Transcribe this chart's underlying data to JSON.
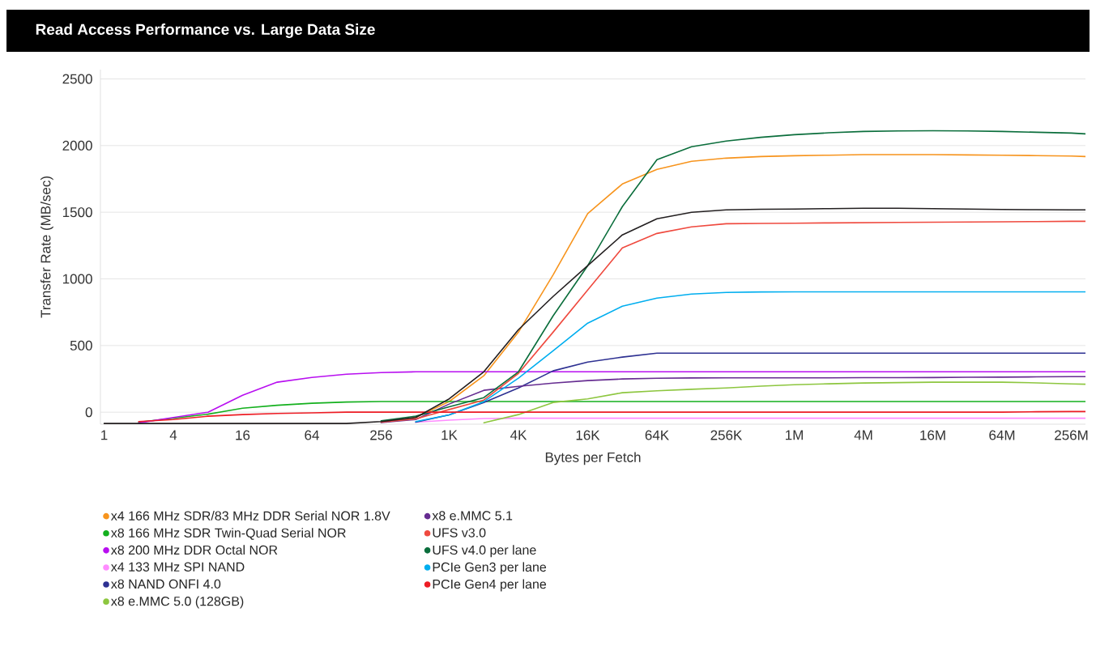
{
  "chart_data": {
    "type": "line",
    "title": "Read Access Performance vs. Large Data Size",
    "xlabel": "Bytes per Fetch",
    "ylabel": "Transfer Rate (MB/sec)",
    "x": [
      1,
      2,
      4,
      8,
      16,
      32,
      64,
      128,
      256,
      512,
      1000,
      2000,
      4000,
      8000,
      16000,
      32000,
      64000,
      128000,
      256000,
      512000,
      1000000,
      2000000,
      4000000,
      8000000,
      16000000,
      32000000,
      64000000,
      128000000,
      256000000,
      340000000
    ],
    "log": "x",
    "xlim": [
      0.93,
      340000000
    ],
    "ylim": [
      -90,
      2570
    ],
    "xticks": [
      1,
      4,
      16,
      64,
      256,
      {
        "value": 1000,
        "label": "1K"
      },
      {
        "value": 4000,
        "label": "4K"
      },
      {
        "value": 16000,
        "label": "16K"
      },
      {
        "value": 64000,
        "label": "64K"
      },
      {
        "value": 256000,
        "label": "256K"
      },
      {
        "value": 1000000,
        "label": "1M"
      },
      {
        "value": 4000000,
        "label": "4M"
      },
      {
        "value": 16000000,
        "label": "16M"
      },
      {
        "value": 64000000,
        "label": "64M"
      },
      {
        "value": 256000000,
        "label": "256M"
      }
    ],
    "yticks": [
      0,
      500,
      1000,
      1500,
      2000,
      2500
    ],
    "grid": "y",
    "legend": "bottom",
    "marker": "none",
    "line_style": "solid",
    "series": [
      {
        "name": "x4 166 MHz SDR/83 MHz DDR Serial NOR 1.8V",
        "color": "#f7941d",
        "values": [
          null,
          null,
          null,
          null,
          null,
          null,
          null,
          null,
          -75,
          -40,
          80,
          273,
          600,
          1030,
          1490,
          1712,
          1821,
          1882,
          1906,
          1918,
          1924,
          1928,
          1932,
          1932,
          1932,
          1930,
          1928,
          1925,
          1922,
          1918
        ]
      },
      {
        "name": "x8 166 MHz SDR Twin-Quad Serial NOR",
        "color": "#14b01e",
        "values": [
          null,
          -75,
          null,
          -15,
          30,
          52,
          67,
          76,
          80,
          80,
          80,
          80,
          80,
          80,
          80,
          80,
          80,
          80,
          80,
          80,
          80,
          80,
          80,
          80,
          80,
          80,
          80,
          80,
          80,
          80
        ]
      },
      {
        "name": "x8 200 MHz DDR Octal NOR",
        "color": "#b80ff0",
        "values": [
          null,
          -80,
          -40,
          0,
          127,
          225,
          261,
          285,
          297,
          303,
          303,
          303,
          303,
          303,
          303,
          303,
          303,
          303,
          303,
          303,
          303,
          303,
          303,
          303,
          303,
          303,
          303,
          303,
          303,
          303
        ]
      },
      {
        "name": "x4 133 MHz SPI NAND",
        "color": "#ff8cff",
        "values": [
          null,
          null,
          null,
          null,
          null,
          null,
          null,
          null,
          null,
          -75,
          -60,
          -48,
          -45,
          -45,
          -45,
          -45,
          -45,
          -45,
          -45,
          -45,
          -45,
          -45,
          -45,
          -45,
          -45,
          -45,
          -45,
          -45,
          -45,
          -45
        ]
      },
      {
        "name": "x8 NAND ONFI 4.0",
        "color": "#2e3192",
        "values": [
          null,
          null,
          null,
          null,
          null,
          null,
          null,
          null,
          null,
          -75,
          -20,
          73,
          182,
          310,
          376,
          413,
          443,
          443,
          443,
          443,
          443,
          443,
          443,
          443,
          443,
          443,
          443,
          443,
          443,
          443
        ]
      },
      {
        "name": "x8 e.MMC 5.0 (128GB)",
        "color": "#8dc63f",
        "values": [
          null,
          null,
          null,
          null,
          null,
          null,
          null,
          null,
          null,
          null,
          null,
          -79,
          -18,
          73,
          100,
          146,
          160,
          172,
          182,
          195,
          206,
          213,
          219,
          222,
          225,
          225,
          225,
          220,
          212,
          210
        ]
      },
      {
        "name": "x8 e.MMC 5.1",
        "color": "#662d91",
        "values": [
          null,
          null,
          null,
          null,
          null,
          null,
          null,
          null,
          -78,
          -55,
          61,
          164,
          194,
          218,
          237,
          249,
          255,
          257,
          258,
          258,
          258,
          258,
          259,
          259,
          260,
          262,
          263,
          265,
          267,
          267
        ]
      },
      {
        "name": "UFS v3.0",
        "color": "#ef4a3f",
        "values": [
          null,
          null,
          null,
          null,
          null,
          null,
          null,
          null,
          -75,
          -50,
          20,
          91,
          291,
          600,
          917,
          1232,
          1341,
          1390,
          1414,
          1416,
          1418,
          1420,
          1422,
          1424,
          1425,
          1427,
          1428,
          1430,
          1432,
          1432
        ]
      },
      {
        "name": "UFS v4.0 per lane",
        "color": "#0b6e3c",
        "values": [
          null,
          null,
          null,
          null,
          null,
          null,
          null,
          null,
          -65,
          -30,
          40,
          109,
          303,
          722,
          1099,
          1542,
          1894,
          1991,
          2034,
          2062,
          2082,
          2096,
          2106,
          2110,
          2112,
          2110,
          2106,
          2100,
          2094,
          2088
        ]
      },
      {
        "name": "PCIe Gen3 per lane",
        "color": "#00aeef",
        "values": [
          null,
          null,
          null,
          null,
          null,
          null,
          null,
          null,
          null,
          -70,
          -20,
          79,
          255,
          460,
          668,
          795,
          856,
          886,
          898,
          902,
          903,
          903,
          903,
          903,
          903,
          903,
          903,
          903,
          903,
          903
        ]
      },
      {
        "name": "PCIe Gen4 per lane",
        "color": "#ed1c24",
        "values": [
          null,
          -70,
          -55,
          -30,
          -18,
          -10,
          -5,
          0,
          0,
          0,
          0,
          0,
          0,
          0,
          0,
          0,
          0,
          0,
          0,
          0,
          0,
          0,
          0,
          0,
          0,
          0,
          0,
          3,
          5,
          5
        ]
      },
      {
        "color": "#231f20",
        "values": [
          -85,
          -85,
          -85,
          -85,
          -85,
          -85,
          -85,
          -85,
          -70,
          -40,
          100,
          303,
          619,
          868,
          1099,
          1330,
          1451,
          1500,
          1518,
          1522,
          1524,
          1527,
          1530,
          1530,
          1527,
          1524,
          1521,
          1519,
          1518,
          1518
        ]
      }
    ]
  }
}
